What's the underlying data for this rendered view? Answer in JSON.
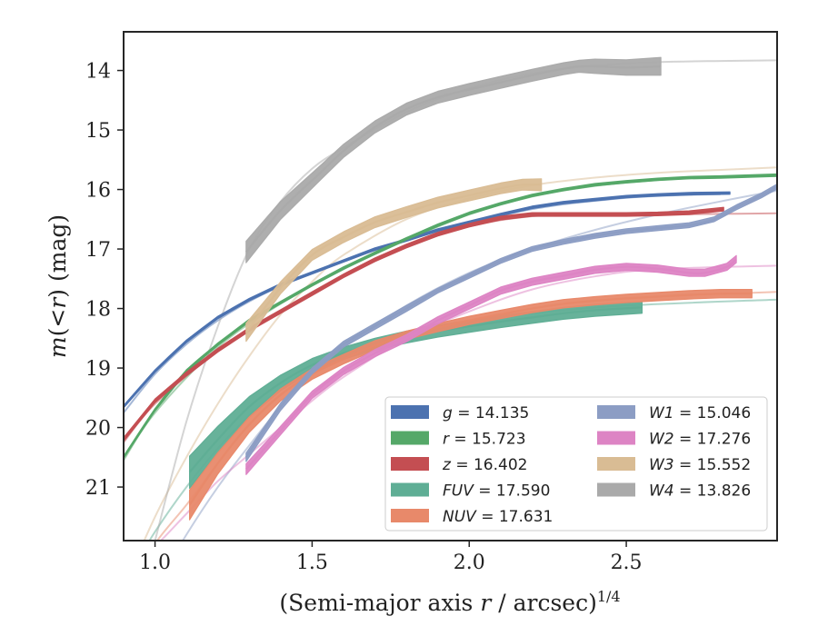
{
  "chart_data": {
    "type": "line",
    "xlabel": "(Semi-major axis r / arcsec)^1/4",
    "ylabel": "m(<r) (mag)",
    "xlim": [
      0.9,
      2.98
    ],
    "ylim": [
      21.9,
      13.35
    ],
    "y_inverted": true,
    "x_ticks": [
      "1.0",
      "1.5",
      "2.0",
      "2.5"
    ],
    "y_ticks": [
      "14",
      "15",
      "16",
      "17",
      "18",
      "19",
      "20",
      "21"
    ],
    "grid": false,
    "legend_position": "lower-right",
    "series": [
      {
        "name": "g = 14.135",
        "color": "#4c72b0",
        "measured": {
          "x": [
            0.9,
            1.0,
            1.1,
            1.2,
            1.3,
            1.4,
            1.5,
            1.6,
            1.7,
            1.8,
            1.9,
            2.0,
            2.1,
            2.2,
            2.3,
            2.4,
            2.5,
            2.6,
            2.7,
            2.83
          ],
          "y": [
            19.65,
            19.05,
            18.55,
            18.15,
            17.85,
            17.6,
            17.4,
            17.2,
            17.0,
            16.85,
            16.68,
            16.55,
            16.42,
            16.3,
            16.22,
            16.17,
            16.12,
            16.09,
            16.07,
            16.06
          ],
          "error": [
            0.02,
            0.02,
            0.02,
            0.02,
            0.02,
            0.02,
            0.02,
            0.02,
            0.02,
            0.02,
            0.02,
            0.02,
            0.02,
            0.02,
            0.02,
            0.02,
            0.02,
            0.02,
            0.02,
            0.02
          ]
        },
        "model": {
          "x": [
            0.9,
            1.0,
            1.1,
            1.2,
            1.3,
            1.4,
            1.5,
            1.6,
            1.7,
            1.8,
            1.9,
            2.0,
            2.1,
            2.2,
            2.3,
            2.4,
            2.5,
            2.6,
            2.7,
            2.8
          ],
          "y": [
            19.75,
            19.1,
            18.6,
            18.2,
            17.88,
            17.62,
            17.4,
            17.2,
            17.02,
            16.86,
            16.7,
            16.56,
            16.44,
            16.33,
            16.25,
            16.19,
            16.14,
            16.11,
            16.09,
            16.08
          ]
        }
      },
      {
        "name": "r = 15.723",
        "color": "#55a868",
        "measured": {
          "x": [
            0.9,
            1.0,
            1.1,
            1.2,
            1.3,
            1.4,
            1.5,
            1.6,
            1.7,
            1.8,
            1.9,
            2.0,
            2.1,
            2.2,
            2.3,
            2.4,
            2.5,
            2.6,
            2.7,
            2.8,
            2.98
          ],
          "y": [
            20.5,
            19.7,
            19.05,
            18.6,
            18.2,
            17.9,
            17.6,
            17.32,
            17.07,
            16.83,
            16.6,
            16.4,
            16.24,
            16.1,
            16.0,
            15.92,
            15.87,
            15.83,
            15.8,
            15.79,
            15.76
          ],
          "error": [
            0.02,
            0.02,
            0.02,
            0.02,
            0.02,
            0.02,
            0.02,
            0.02,
            0.02,
            0.02,
            0.02,
            0.02,
            0.02,
            0.02,
            0.02,
            0.02,
            0.02,
            0.02,
            0.02,
            0.02,
            0.02
          ]
        },
        "model": {
          "x": [
            0.9,
            1.0,
            1.2,
            1.4,
            1.6,
            1.8,
            2.0,
            2.2,
            2.4,
            2.6,
            2.8,
            2.98
          ],
          "y": [
            20.55,
            19.75,
            18.65,
            17.92,
            17.34,
            16.85,
            16.42,
            16.12,
            15.94,
            15.84,
            15.79,
            15.77
          ]
        }
      },
      {
        "name": "z = 16.402",
        "color": "#c44e52",
        "measured": {
          "x": [
            0.9,
            1.0,
            1.1,
            1.2,
            1.3,
            1.4,
            1.5,
            1.6,
            1.7,
            1.8,
            1.9,
            2.0,
            2.1,
            2.2,
            2.3,
            2.4,
            2.5,
            2.6,
            2.7,
            2.81
          ],
          "y": [
            20.2,
            19.55,
            19.1,
            18.7,
            18.35,
            18.05,
            17.75,
            17.45,
            17.18,
            16.95,
            16.75,
            16.6,
            16.48,
            16.42,
            16.42,
            16.42,
            16.42,
            16.41,
            16.39,
            16.33
          ],
          "error": [
            0.03,
            0.03,
            0.03,
            0.03,
            0.03,
            0.03,
            0.03,
            0.03,
            0.03,
            0.03,
            0.03,
            0.03,
            0.03,
            0.03,
            0.03,
            0.03,
            0.03,
            0.03,
            0.03,
            0.03
          ]
        },
        "model": {
          "x": [
            0.9,
            1.0,
            1.2,
            1.4,
            1.6,
            1.8,
            2.0,
            2.2,
            2.4,
            2.6,
            2.8,
            2.98
          ],
          "y": [
            20.25,
            19.6,
            18.72,
            18.07,
            17.47,
            16.97,
            16.62,
            16.45,
            16.42,
            16.42,
            16.41,
            16.4
          ]
        }
      },
      {
        "name": "FUV = 17.590",
        "color": "#5fae95",
        "measured": {
          "x": [
            1.11,
            1.2,
            1.3,
            1.4,
            1.5,
            1.6,
            1.7,
            1.8,
            1.9,
            2.0,
            2.1,
            2.2,
            2.3,
            2.4,
            2.55
          ],
          "y": [
            20.75,
            20.2,
            19.65,
            19.25,
            18.95,
            18.75,
            18.6,
            18.48,
            18.38,
            18.3,
            18.22,
            18.15,
            18.08,
            18.03,
            17.98
          ],
          "error": [
            0.27,
            0.22,
            0.17,
            0.13,
            0.11,
            0.1,
            0.1,
            0.1,
            0.1,
            0.1,
            0.1,
            0.1,
            0.1,
            0.1,
            0.1
          ]
        },
        "model": {
          "x": [
            0.9,
            0.95,
            1.0,
            1.1,
            1.2,
            1.3,
            1.4,
            1.5,
            1.6,
            1.8,
            2.0,
            2.2,
            2.5,
            2.98
          ],
          "y": [
            22.6,
            22.2,
            21.75,
            21.0,
            20.35,
            19.8,
            19.35,
            19.0,
            18.75,
            18.42,
            18.22,
            18.08,
            17.95,
            17.85
          ]
        }
      },
      {
        "name": "NUV = 17.631",
        "color": "#e8896a",
        "measured": {
          "x": [
            1.11,
            1.2,
            1.3,
            1.4,
            1.5,
            1.6,
            1.7,
            1.8,
            1.9,
            2.0,
            2.1,
            2.2,
            2.3,
            2.4,
            2.5,
            2.6,
            2.7,
            2.8,
            2.9
          ],
          "y": [
            21.3,
            20.6,
            19.95,
            19.45,
            19.1,
            18.85,
            18.62,
            18.45,
            18.32,
            18.2,
            18.1,
            18.0,
            17.92,
            17.87,
            17.83,
            17.8,
            17.77,
            17.75,
            17.75
          ],
          "error": [
            0.25,
            0.18,
            0.13,
            0.1,
            0.09,
            0.08,
            0.08,
            0.07,
            0.07,
            0.07,
            0.07,
            0.07,
            0.07,
            0.07,
            0.07,
            0.07,
            0.07,
            0.07,
            0.07
          ]
        },
        "model": {
          "x": [
            0.9,
            1.0,
            1.1,
            1.2,
            1.3,
            1.4,
            1.5,
            1.6,
            1.8,
            2.0,
            2.2,
            2.4,
            2.6,
            2.98
          ],
          "y": [
            22.8,
            21.95,
            21.3,
            20.6,
            19.95,
            19.45,
            19.1,
            18.85,
            18.45,
            18.2,
            18.0,
            17.87,
            17.8,
            17.72
          ]
        }
      },
      {
        "name": "W1 = 15.046",
        "color": "#8c9dc4",
        "measured": {
          "x": [
            1.29,
            1.4,
            1.5,
            1.6,
            1.7,
            1.8,
            1.9,
            2.0,
            2.1,
            2.2,
            2.3,
            2.4,
            2.5,
            2.6,
            2.7,
            2.78,
            2.85,
            2.93,
            2.98
          ],
          "y": [
            20.5,
            19.65,
            19.05,
            18.6,
            18.3,
            18.0,
            17.7,
            17.45,
            17.2,
            17.0,
            16.88,
            16.78,
            16.7,
            16.65,
            16.6,
            16.5,
            16.3,
            16.1,
            15.95
          ],
          "error": [
            0.07,
            0.06,
            0.05,
            0.05,
            0.05,
            0.05,
            0.04,
            0.04,
            0.04,
            0.04,
            0.04,
            0.04,
            0.04,
            0.04,
            0.04,
            0.04,
            0.04,
            0.04,
            0.04
          ]
        },
        "model": {
          "x": [
            1.0,
            1.1,
            1.2,
            1.3,
            1.4,
            1.5,
            1.6,
            1.8,
            2.0,
            2.2,
            2.4,
            2.6,
            2.8,
            2.98
          ],
          "y": [
            22.7,
            21.8,
            21.0,
            20.3,
            19.65,
            19.1,
            18.65,
            17.95,
            17.4,
            17.0,
            16.68,
            16.42,
            16.2,
            16.02
          ]
        }
      },
      {
        "name": "W2 = 17.276",
        "color": "#dd84c4",
        "measured": {
          "x": [
            1.29,
            1.4,
            1.5,
            1.6,
            1.7,
            1.8,
            1.9,
            2.0,
            2.1,
            2.2,
            2.3,
            2.4,
            2.5,
            2.6,
            2.7,
            2.75,
            2.82,
            2.85
          ],
          "y": [
            20.7,
            20.05,
            19.45,
            19.05,
            18.75,
            18.5,
            18.2,
            17.95,
            17.7,
            17.55,
            17.45,
            17.35,
            17.3,
            17.33,
            17.4,
            17.4,
            17.3,
            17.17
          ],
          "error": [
            0.09,
            0.07,
            0.06,
            0.06,
            0.06,
            0.06,
            0.06,
            0.06,
            0.06,
            0.06,
            0.06,
            0.06,
            0.06,
            0.06,
            0.06,
            0.06,
            0.06,
            0.06
          ]
        },
        "model": {
          "x": [
            0.9,
            1.0,
            1.1,
            1.2,
            1.3,
            1.4,
            1.5,
            1.6,
            1.8,
            2.0,
            2.2,
            2.4,
            2.6,
            2.98
          ],
          "y": [
            22.5,
            22.0,
            21.45,
            20.9,
            20.45,
            20.0,
            19.55,
            19.15,
            18.5,
            18.05,
            17.68,
            17.46,
            17.34,
            17.28
          ]
        }
      },
      {
        "name": "W3 = 15.552",
        "color": "#d9bc94",
        "measured": {
          "x": [
            1.29,
            1.4,
            1.5,
            1.6,
            1.7,
            1.8,
            1.9,
            2.0,
            2.1,
            2.17,
            2.23
          ],
          "y": [
            18.4,
            17.65,
            17.1,
            16.8,
            16.55,
            16.38,
            16.22,
            16.1,
            15.98,
            15.92,
            15.92
          ],
          "error": [
            0.15,
            0.1,
            0.09,
            0.09,
            0.09,
            0.09,
            0.09,
            0.09,
            0.09,
            0.09,
            0.1
          ]
        },
        "model": {
          "x": [
            0.9,
            1.0,
            1.1,
            1.2,
            1.3,
            1.4,
            1.5,
            1.6,
            1.8,
            2.0,
            2.2,
            2.4,
            2.6,
            2.8,
            2.98
          ],
          "y": [
            22.7,
            21.5,
            20.5,
            19.6,
            18.8,
            18.1,
            17.55,
            17.1,
            16.5,
            16.15,
            15.93,
            15.8,
            15.72,
            15.67,
            15.63
          ]
        }
      },
      {
        "name": "W4 = 13.826",
        "color": "#aaaaaa",
        "measured": {
          "x": [
            1.29,
            1.4,
            1.53,
            1.6,
            1.7,
            1.8,
            1.9,
            2.0,
            2.1,
            2.2,
            2.3,
            2.35,
            2.4,
            2.5,
            2.61
          ],
          "y": [
            17.05,
            16.35,
            15.7,
            15.35,
            14.95,
            14.65,
            14.45,
            14.32,
            14.2,
            14.08,
            13.97,
            13.93,
            13.93,
            13.95,
            13.93
          ],
          "error": [
            0.18,
            0.15,
            0.12,
            0.11,
            0.1,
            0.1,
            0.1,
            0.1,
            0.1,
            0.1,
            0.1,
            0.1,
            0.12,
            0.13,
            0.15
          ]
        },
        "model": {
          "x": [
            1.0,
            1.1,
            1.2,
            1.3,
            1.4,
            1.5,
            1.6,
            1.8,
            2.0,
            2.2,
            2.4,
            2.6,
            2.8,
            2.98
          ],
          "y": [
            21.9,
            19.9,
            18.3,
            17.0,
            16.2,
            15.65,
            15.3,
            14.7,
            14.3,
            14.05,
            13.92,
            13.86,
            13.84,
            13.83
          ]
        }
      }
    ]
  }
}
